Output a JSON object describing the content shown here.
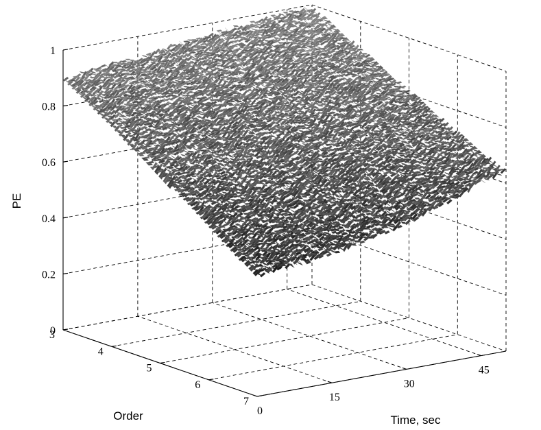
{
  "chart_data": {
    "type": "surface3d",
    "title": "",
    "xlabel": "Time, sec",
    "ylabel": "Order",
    "zlabel": "PE",
    "xlim": [
      0,
      50
    ],
    "ylim": [
      3,
      7
    ],
    "zlim": [
      0,
      1
    ],
    "x_ticks": [
      "0",
      "15",
      "30",
      "45"
    ],
    "y_ticks": [
      "3",
      "4",
      "5",
      "6",
      "7"
    ],
    "z_ticks": [
      "0",
      "0.2",
      "0.4",
      "0.6",
      "0.8",
      "1"
    ],
    "grid": true,
    "colormap": "gray",
    "time": [
      0,
      5,
      10,
      15,
      20,
      25,
      30,
      35,
      40,
      45,
      50
    ],
    "series": [
      {
        "name": "3",
        "values": [
          0.89,
          0.91,
          0.92,
          0.92,
          0.94,
          0.95,
          0.96,
          0.97,
          0.98,
          0.99,
          0.99
        ]
      },
      {
        "name": "4",
        "values": [
          0.79,
          0.81,
          0.82,
          0.83,
          0.85,
          0.86,
          0.87,
          0.88,
          0.89,
          0.9,
          0.9
        ]
      },
      {
        "name": "5",
        "values": [
          0.67,
          0.69,
          0.71,
          0.72,
          0.74,
          0.76,
          0.77,
          0.79,
          0.8,
          0.81,
          0.81
        ]
      },
      {
        "name": "6",
        "values": [
          0.55,
          0.57,
          0.59,
          0.61,
          0.63,
          0.65,
          0.67,
          0.69,
          0.7,
          0.71,
          0.72
        ]
      },
      {
        "name": "7",
        "values": [
          0.43,
          0.44,
          0.45,
          0.46,
          0.48,
          0.5,
          0.52,
          0.55,
          0.58,
          0.62,
          0.64
        ]
      }
    ]
  }
}
